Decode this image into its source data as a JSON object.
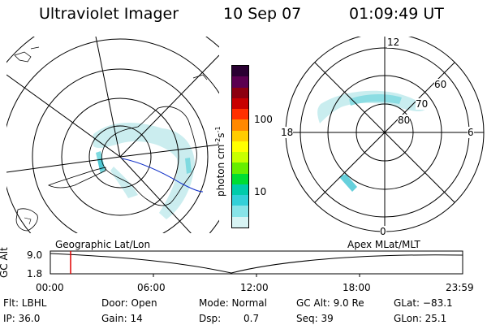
{
  "header": {
    "title": "Ultraviolet Imager",
    "date": "10 Sep 07",
    "time": "01:09:49 UT"
  },
  "left_panel": {
    "label": "Geographic Lat/Lon"
  },
  "right_panel": {
    "label": "Apex MLat/MLT",
    "mlt_labels": [
      "12",
      "6",
      "0",
      "18"
    ],
    "lat_labels": [
      "60",
      "70",
      "80"
    ]
  },
  "colorbar": {
    "unit": "photon cm",
    "unit_exp1": "-2",
    "unit_s": "s",
    "unit_exp2": "-1",
    "ticks": [
      "100",
      "10"
    ],
    "colors": [
      "#2a0032",
      "#5b0050",
      "#8c0010",
      "#c80000",
      "#ff3000",
      "#ff8800",
      "#ffcc00",
      "#ffff00",
      "#c8ff00",
      "#66ee00",
      "#00dd33",
      "#00ccaa",
      "#33d0d8",
      "#88e4e8",
      "#d8f4f4"
    ]
  },
  "timeline": {
    "ylabel": "GC Alt",
    "yticks": [
      "9.0",
      "1.8"
    ],
    "xticks": [
      "00:00",
      "06:00",
      "12:00",
      "18:00",
      "23:59"
    ],
    "marker_time": "01:09:49"
  },
  "info": {
    "filter": "Flt: LBHL",
    "door": "Door: Open",
    "mode": "Mode: Normal",
    "gc_alt": "GC Alt: 9.0 Re",
    "glat": "GLat: −83.1",
    "ip": "IP: 36.0",
    "gain": "Gain: 14",
    "dsp_label": "Dsp:",
    "dsp_value": "0.7",
    "seq": "Seq: 39",
    "glon": "GLon:  25.1"
  }
}
